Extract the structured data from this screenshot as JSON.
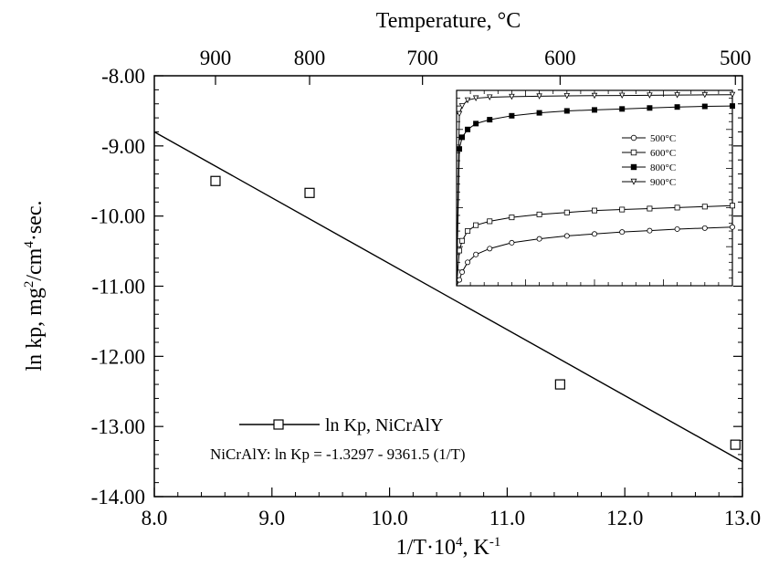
{
  "chart_data": [
    {
      "type": "scatter",
      "title": "",
      "xlabel": "1/T·10",
      "xlabel_sup": "4",
      "xlabel_unit": ", K",
      "xlabel_unit_sup": "-1",
      "ylabel": "ln kp, mg",
      "ylabel_sup1": "2",
      "ylabel_mid": "/cm",
      "ylabel_sup2": "4",
      "ylabel_end": "·sec.",
      "x2label": "Temperature, °C",
      "xlim": [
        8.0,
        13.0
      ],
      "ylim": [
        -14.0,
        -8.0
      ],
      "x_ticks": [
        "8.0",
        "9.0",
        "10.0",
        "11.0",
        "12.0",
        "13.0"
      ],
      "y_ticks": [
        "-8.00",
        "-9.00",
        "-10.00",
        "-11.00",
        "-12.00",
        "-13.00",
        "-14.00"
      ],
      "x2_ticks": [
        {
          "label": "900",
          "x": 8.52
        },
        {
          "label": "800",
          "x": 9.32
        },
        {
          "label": "700",
          "x": 10.28
        },
        {
          "label": "600",
          "x": 11.45
        },
        {
          "label": "500",
          "x": 12.94
        }
      ],
      "grid": false,
      "series": [
        {
          "name": "ln Kp, NiCrAlY",
          "marker": "square",
          "x": [
            8.52,
            9.32,
            11.45,
            12.94
          ],
          "y": [
            -9.5,
            -9.67,
            -12.4,
            -13.26
          ]
        }
      ],
      "fit": {
        "x": [
          8.0,
          13.0
        ],
        "y": [
          -8.8,
          -13.5
        ]
      },
      "legend": {
        "placement": "bottom-left",
        "entry": "ln Kp, NiCrAlY"
      },
      "annotation": "NiCrAlY: ln Kp = -1.3297 - 9361.5 (1/T)"
    },
    {
      "type": "line",
      "title": "",
      "xlabel": "",
      "ylabel": "",
      "inset": true,
      "xlim": [
        0,
        100
      ],
      "ylim": [
        0,
        1
      ],
      "grid": false,
      "legend": {
        "placement": "top-right",
        "entries": [
          "500°C",
          "600°C",
          "800°C",
          "900°C"
        ]
      },
      "series": [
        {
          "name": "500°C",
          "marker": "circle",
          "x": [
            1,
            2,
            4,
            7,
            12,
            20,
            30,
            40,
            50,
            60,
            70,
            80,
            90,
            100
          ],
          "y": [
            0.03,
            0.07,
            0.12,
            0.16,
            0.19,
            0.22,
            0.24,
            0.255,
            0.265,
            0.275,
            0.282,
            0.29,
            0.295,
            0.3
          ]
        },
        {
          "name": "600°C",
          "marker": "square",
          "x": [
            1,
            2,
            4,
            7,
            12,
            20,
            30,
            40,
            50,
            60,
            70,
            80,
            90,
            100
          ],
          "y": [
            0.18,
            0.23,
            0.28,
            0.31,
            0.33,
            0.35,
            0.365,
            0.375,
            0.385,
            0.39,
            0.395,
            0.4,
            0.405,
            0.41
          ]
        },
        {
          "name": "800°C",
          "marker": "filled-square",
          "x": [
            1,
            2,
            4,
            7,
            12,
            20,
            30,
            40,
            50,
            60,
            70,
            80,
            90,
            100
          ],
          "y": [
            0.7,
            0.76,
            0.8,
            0.83,
            0.85,
            0.87,
            0.885,
            0.895,
            0.9,
            0.905,
            0.91,
            0.915,
            0.918,
            0.92
          ]
        },
        {
          "name": "900°C",
          "marker": "triangle-down",
          "x": [
            1,
            2,
            4,
            7,
            12,
            20,
            30,
            40,
            50,
            60,
            70,
            80,
            90,
            100
          ],
          "y": [
            0.88,
            0.92,
            0.95,
            0.96,
            0.965,
            0.968,
            0.97,
            0.972,
            0.973,
            0.974,
            0.975,
            0.976,
            0.977,
            0.978
          ]
        }
      ]
    }
  ]
}
